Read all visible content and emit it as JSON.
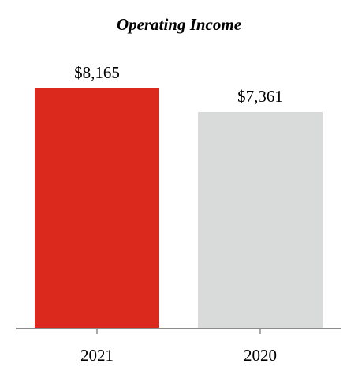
{
  "chart_data": {
    "type": "bar",
    "title": "Operating Income",
    "categories": [
      "2021",
      "2020"
    ],
    "values": [
      8165,
      7361
    ],
    "value_labels": [
      "$8,165",
      "$7,361"
    ],
    "colors": [
      "#dc291e",
      "#d9dbdb"
    ],
    "axis_color": "#8c8c8c",
    "xlabel": "",
    "ylabel": "",
    "ylim": [
      0,
      9000
    ],
    "grid": false,
    "legend": "none"
  }
}
